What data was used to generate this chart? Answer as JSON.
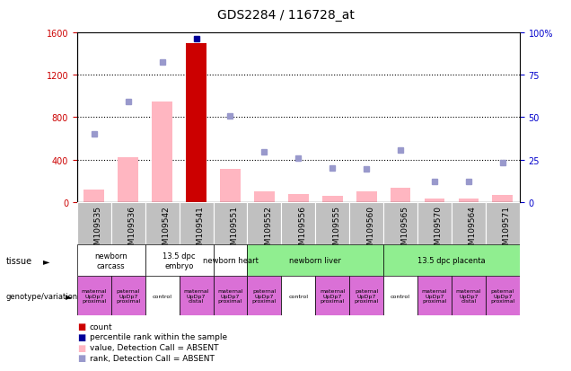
{
  "title": "GDS2284 / 116728_at",
  "samples": [
    "GSM109535",
    "GSM109536",
    "GSM109542",
    "GSM109541",
    "GSM109551",
    "GSM109552",
    "GSM109556",
    "GSM109555",
    "GSM109560",
    "GSM109565",
    "GSM109570",
    "GSM109564",
    "GSM109571"
  ],
  "count_values": [
    null,
    null,
    null,
    1500,
    null,
    null,
    null,
    null,
    null,
    null,
    null,
    null,
    null
  ],
  "count_is_present": [
    false,
    false,
    false,
    true,
    false,
    false,
    false,
    false,
    false,
    false,
    false,
    false,
    false
  ],
  "pink_bar_values": [
    120,
    420,
    950,
    1500,
    310,
    100,
    70,
    55,
    100,
    130,
    30,
    35,
    65
  ],
  "blue_square_values": [
    640,
    950,
    1320,
    1540,
    810,
    470,
    410,
    320,
    310,
    490,
    190,
    190,
    370
  ],
  "ylim_left": [
    0,
    1600
  ],
  "ylim_right": [
    0,
    100
  ],
  "yticks_left": [
    0,
    400,
    800,
    1200,
    1600
  ],
  "yticks_right": [
    0,
    25,
    50,
    75,
    100
  ],
  "ytick_labels_right": [
    "0",
    "25",
    "50",
    "75",
    "100%"
  ],
  "tissues": [
    {
      "label": "newborn\ncarcass",
      "start": 0,
      "end": 2,
      "color": "#ffffff"
    },
    {
      "label": "13.5 dpc\nembryo",
      "start": 2,
      "end": 4,
      "color": "#ffffff"
    },
    {
      "label": "newborn heart",
      "start": 4,
      "end": 5,
      "color": "#ffffff"
    },
    {
      "label": "newborn liver",
      "start": 5,
      "end": 9,
      "color": "#90ee90"
    },
    {
      "label": "13.5 dpc placenta",
      "start": 9,
      "end": 13,
      "color": "#90ee90"
    }
  ],
  "genotypes": [
    {
      "label": "maternal\nUpDp7\nproximal",
      "start": 0,
      "end": 1,
      "color": "#da70d6"
    },
    {
      "label": "paternal\nUpDp7\nproximal",
      "start": 1,
      "end": 2,
      "color": "#da70d6"
    },
    {
      "label": "control",
      "start": 2,
      "end": 3,
      "color": "#ffffff"
    },
    {
      "label": "maternal\nUpDp7\ndistal",
      "start": 3,
      "end": 4,
      "color": "#da70d6"
    },
    {
      "label": "maternal\nUpDp7\nproximal",
      "start": 4,
      "end": 5,
      "color": "#da70d6"
    },
    {
      "label": "paternal\nUpDp7\nproximal",
      "start": 5,
      "end": 6,
      "color": "#da70d6"
    },
    {
      "label": "control",
      "start": 6,
      "end": 7,
      "color": "#ffffff"
    },
    {
      "label": "maternal\nUpDp7\nproximal",
      "start": 7,
      "end": 8,
      "color": "#da70d6"
    },
    {
      "label": "paternal\nUpDp7\nproximal",
      "start": 8,
      "end": 9,
      "color": "#da70d6"
    },
    {
      "label": "control",
      "start": 9,
      "end": 10,
      "color": "#ffffff"
    },
    {
      "label": "maternal\nUpDp7\nproximal",
      "start": 10,
      "end": 11,
      "color": "#da70d6"
    },
    {
      "label": "maternal\nUpDp7\ndistal",
      "start": 11,
      "end": 12,
      "color": "#da70d6"
    },
    {
      "label": "paternal\nUpDp7\nproximal",
      "start": 12,
      "end": 13,
      "color": "#da70d6"
    }
  ],
  "bar_color_pink": "#ffb6c1",
  "bar_color_red": "#cc0000",
  "square_color_blue": "#9999cc",
  "square_color_darkblue": "#000099",
  "left_axis_color": "#cc0000",
  "right_axis_color": "#0000cc",
  "grid_color": "#000000",
  "bg_color": "#ffffff",
  "label_fontsize": 6.5,
  "tick_fontsize": 7,
  "title_fontsize": 10
}
